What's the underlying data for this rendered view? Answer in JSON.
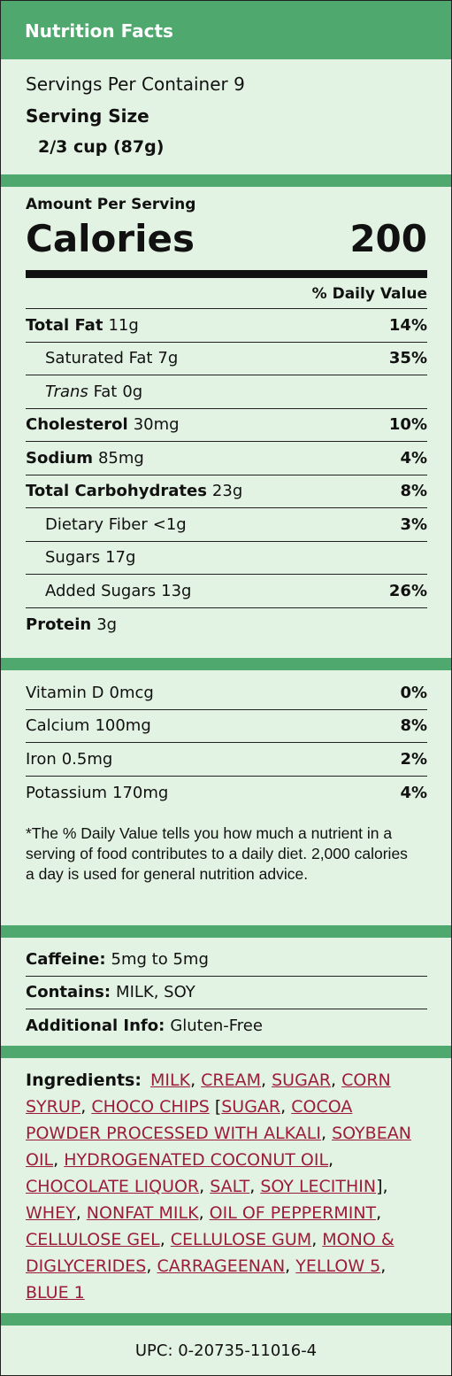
{
  "header": {
    "title": "Nutrition Facts"
  },
  "servings": {
    "per_container_label": "Servings Per Container",
    "per_container": 9,
    "serving_size_label": "Serving Size",
    "serving_size": "2/3 cup (87g)"
  },
  "calories": {
    "heading": "Amount Per Serving",
    "label": "Calories",
    "value": 200
  },
  "daily_value_header": "% Daily Value",
  "nutrients": [
    {
      "name": "Total Fat",
      "amount": "11g",
      "dv": "14%",
      "bold": true
    },
    {
      "name": "Saturated Fat",
      "amount": "7g",
      "dv": "35%",
      "indent": true
    },
    {
      "italic": "Trans",
      "name": "Fat",
      "amount": "0g",
      "indent": true
    },
    {
      "name": "Cholesterol",
      "amount": "30mg",
      "dv": "10%",
      "bold": true
    },
    {
      "name": "Sodium",
      "amount": "85mg",
      "dv": "4%",
      "bold": true
    },
    {
      "name": "Total Carbohydrates",
      "amount": "23g",
      "dv": "8%",
      "bold": true
    },
    {
      "name": "Dietary Fiber",
      "amount": "<1g",
      "dv": "3%",
      "indent": true
    },
    {
      "name": "Sugars",
      "amount": "17g",
      "indent": true
    },
    {
      "name": "Added Sugars",
      "amount": "13g",
      "dv": "26%",
      "indent": true
    },
    {
      "name": "Protein",
      "amount": "3g",
      "bold": true
    }
  ],
  "vitamins": [
    {
      "name": "Vitamin D",
      "amount": "0mcg",
      "dv": "0%"
    },
    {
      "name": "Calcium",
      "amount": "100mg",
      "dv": "8%"
    },
    {
      "name": "Iron",
      "amount": "0.5mg",
      "dv": "2%"
    },
    {
      "name": "Potassium",
      "amount": "170mg",
      "dv": "4%"
    }
  ],
  "footnote": "*The % Daily Value tells you how much a nutrient in a serving of food contributes to a daily diet. 2,000 calories a day is used for general nutrition advice.",
  "info": [
    {
      "label": "Caffeine:",
      "value": "5mg to 5mg"
    },
    {
      "label": "Contains:",
      "value": "MILK, SOY"
    },
    {
      "label": "Additional Info:",
      "value": "Gluten-Free"
    }
  ],
  "ingredients": {
    "label": "Ingredients:",
    "items": [
      {
        "link": "MILK"
      },
      {
        "text": ", "
      },
      {
        "link": "CREAM"
      },
      {
        "text": ", "
      },
      {
        "link": "SUGAR"
      },
      {
        "text": ", "
      },
      {
        "link": "CORN SYRUP"
      },
      {
        "text": ", "
      },
      {
        "link": "CHOCO CHIPS"
      },
      {
        "text": " ["
      },
      {
        "link": "SUGAR"
      },
      {
        "text": ", "
      },
      {
        "link": "COCOA POWDER PROCESSED WITH ALKALI"
      },
      {
        "text": ", "
      },
      {
        "link": "SOYBEAN OIL"
      },
      {
        "text": ", "
      },
      {
        "link": "HYDROGENATED COCONUT OIL"
      },
      {
        "text": ", "
      },
      {
        "link": "CHOCOLATE LIQUOR"
      },
      {
        "text": ", "
      },
      {
        "link": "SALT"
      },
      {
        "text": ", "
      },
      {
        "link": "SOY LECITHIN"
      },
      {
        "text": "], "
      },
      {
        "link": "WHEY"
      },
      {
        "text": ", "
      },
      {
        "link": "NONFAT MILK"
      },
      {
        "text": ", "
      },
      {
        "link": "OIL OF PEPPERMINT"
      },
      {
        "text": ", "
      },
      {
        "link": "CELLULOSE GEL"
      },
      {
        "text": ", "
      },
      {
        "link": "CELLULOSE GUM"
      },
      {
        "text": ", "
      },
      {
        "link": "MONO & DIGLYCERIDES"
      },
      {
        "text": ", "
      },
      {
        "link": "CARRAGEENAN"
      },
      {
        "text": ", "
      },
      {
        "link": "YELLOW 5"
      },
      {
        "text": ", "
      },
      {
        "link": "BLUE 1"
      }
    ]
  },
  "upc": "UPC: 0-20735-11016-4"
}
